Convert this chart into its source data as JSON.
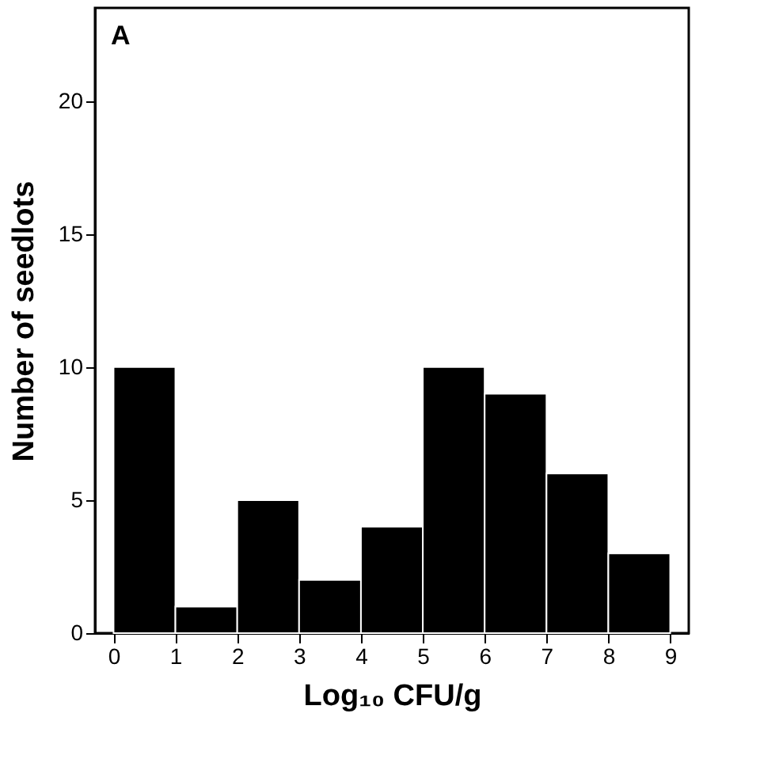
{
  "chart_data": {
    "type": "histogram",
    "bins": [
      0,
      1,
      2,
      3,
      4,
      5,
      6,
      7,
      8,
      9
    ],
    "values": [
      10,
      1,
      5,
      2,
      4,
      10,
      9,
      6,
      3
    ],
    "color": "#000000",
    "xlabel": "Log₁₀ CFU/g",
    "ylabel": "Number of seedlots",
    "xlim": [
      -0.3,
      9.3
    ],
    "xticks": [
      0,
      1,
      2,
      3,
      4,
      5,
      6,
      7,
      8,
      9
    ],
    "ylim": [
      0,
      23.5
    ],
    "yticks": [
      0,
      5,
      10,
      15,
      20
    ],
    "annotations": [
      "A"
    ],
    "grid": false
  }
}
